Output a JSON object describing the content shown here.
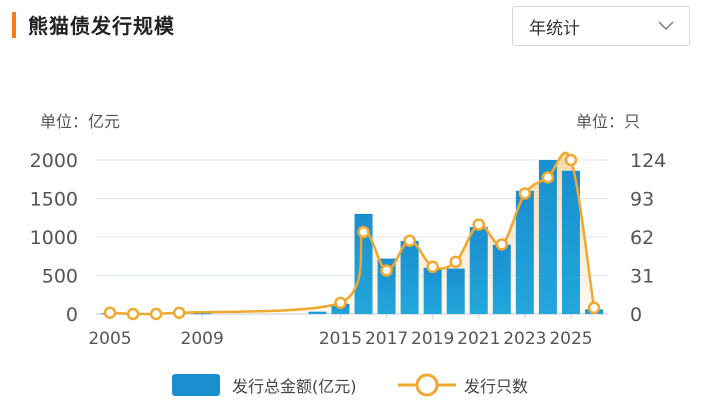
{
  "header": {
    "title": "熊猫债发行规模",
    "period_select": "年统计"
  },
  "units": {
    "left": "单位：亿元",
    "right": "单位：只"
  },
  "colors": {
    "accent": "#f07d16",
    "bar": "#1a8fd0",
    "line": "#f0a830",
    "grid": "#dde6f0"
  },
  "chart_data": {
    "type": "bar",
    "title": "熊猫债发行规模",
    "x": [
      2005,
      2006,
      2007,
      2008,
      2009,
      2010,
      2011,
      2012,
      2013,
      2014,
      2015,
      2016,
      2017,
      2018,
      2019,
      2020,
      2021,
      2022,
      2023,
      2024,
      2025,
      2026
    ],
    "x_tick_labels": [
      "2005",
      "2009",
      "2015",
      "2017",
      "2019",
      "2021",
      "2023",
      "2025"
    ],
    "ylim": [
      0,
      2000
    ],
    "y_ticks": [
      0,
      500,
      1000,
      1500,
      2000
    ],
    "y2lim": [
      0,
      124
    ],
    "y2_ticks": [
      0,
      31,
      62,
      93,
      124
    ],
    "series": [
      {
        "name": "发行总金额(亿元)",
        "type": "bar",
        "axis": "left",
        "x": [
          2005,
          2006,
          2009,
          2014,
          2015,
          2016,
          2017,
          2018,
          2019,
          2020,
          2021,
          2022,
          2023,
          2024,
          2025,
          2026
        ],
        "values": [
          10,
          10,
          10,
          30,
          130,
          1300,
          720,
          950,
          600,
          590,
          1130,
          900,
          1600,
          2000,
          1860,
          60
        ]
      },
      {
        "name": "发行只数",
        "type": "line",
        "axis": "right",
        "x": [
          2005,
          2006,
          2007,
          2008,
          2015,
          2016,
          2017,
          2018,
          2019,
          2020,
          2021,
          2022,
          2023,
          2024,
          2025,
          2026
        ],
        "values": [
          1,
          0,
          0,
          1,
          9,
          66,
          35,
          59,
          38,
          42,
          72,
          56,
          97,
          110,
          124,
          5
        ]
      }
    ]
  },
  "legend": {
    "bar_label": "发行总金额(亿元)",
    "line_label": "发行只数"
  }
}
